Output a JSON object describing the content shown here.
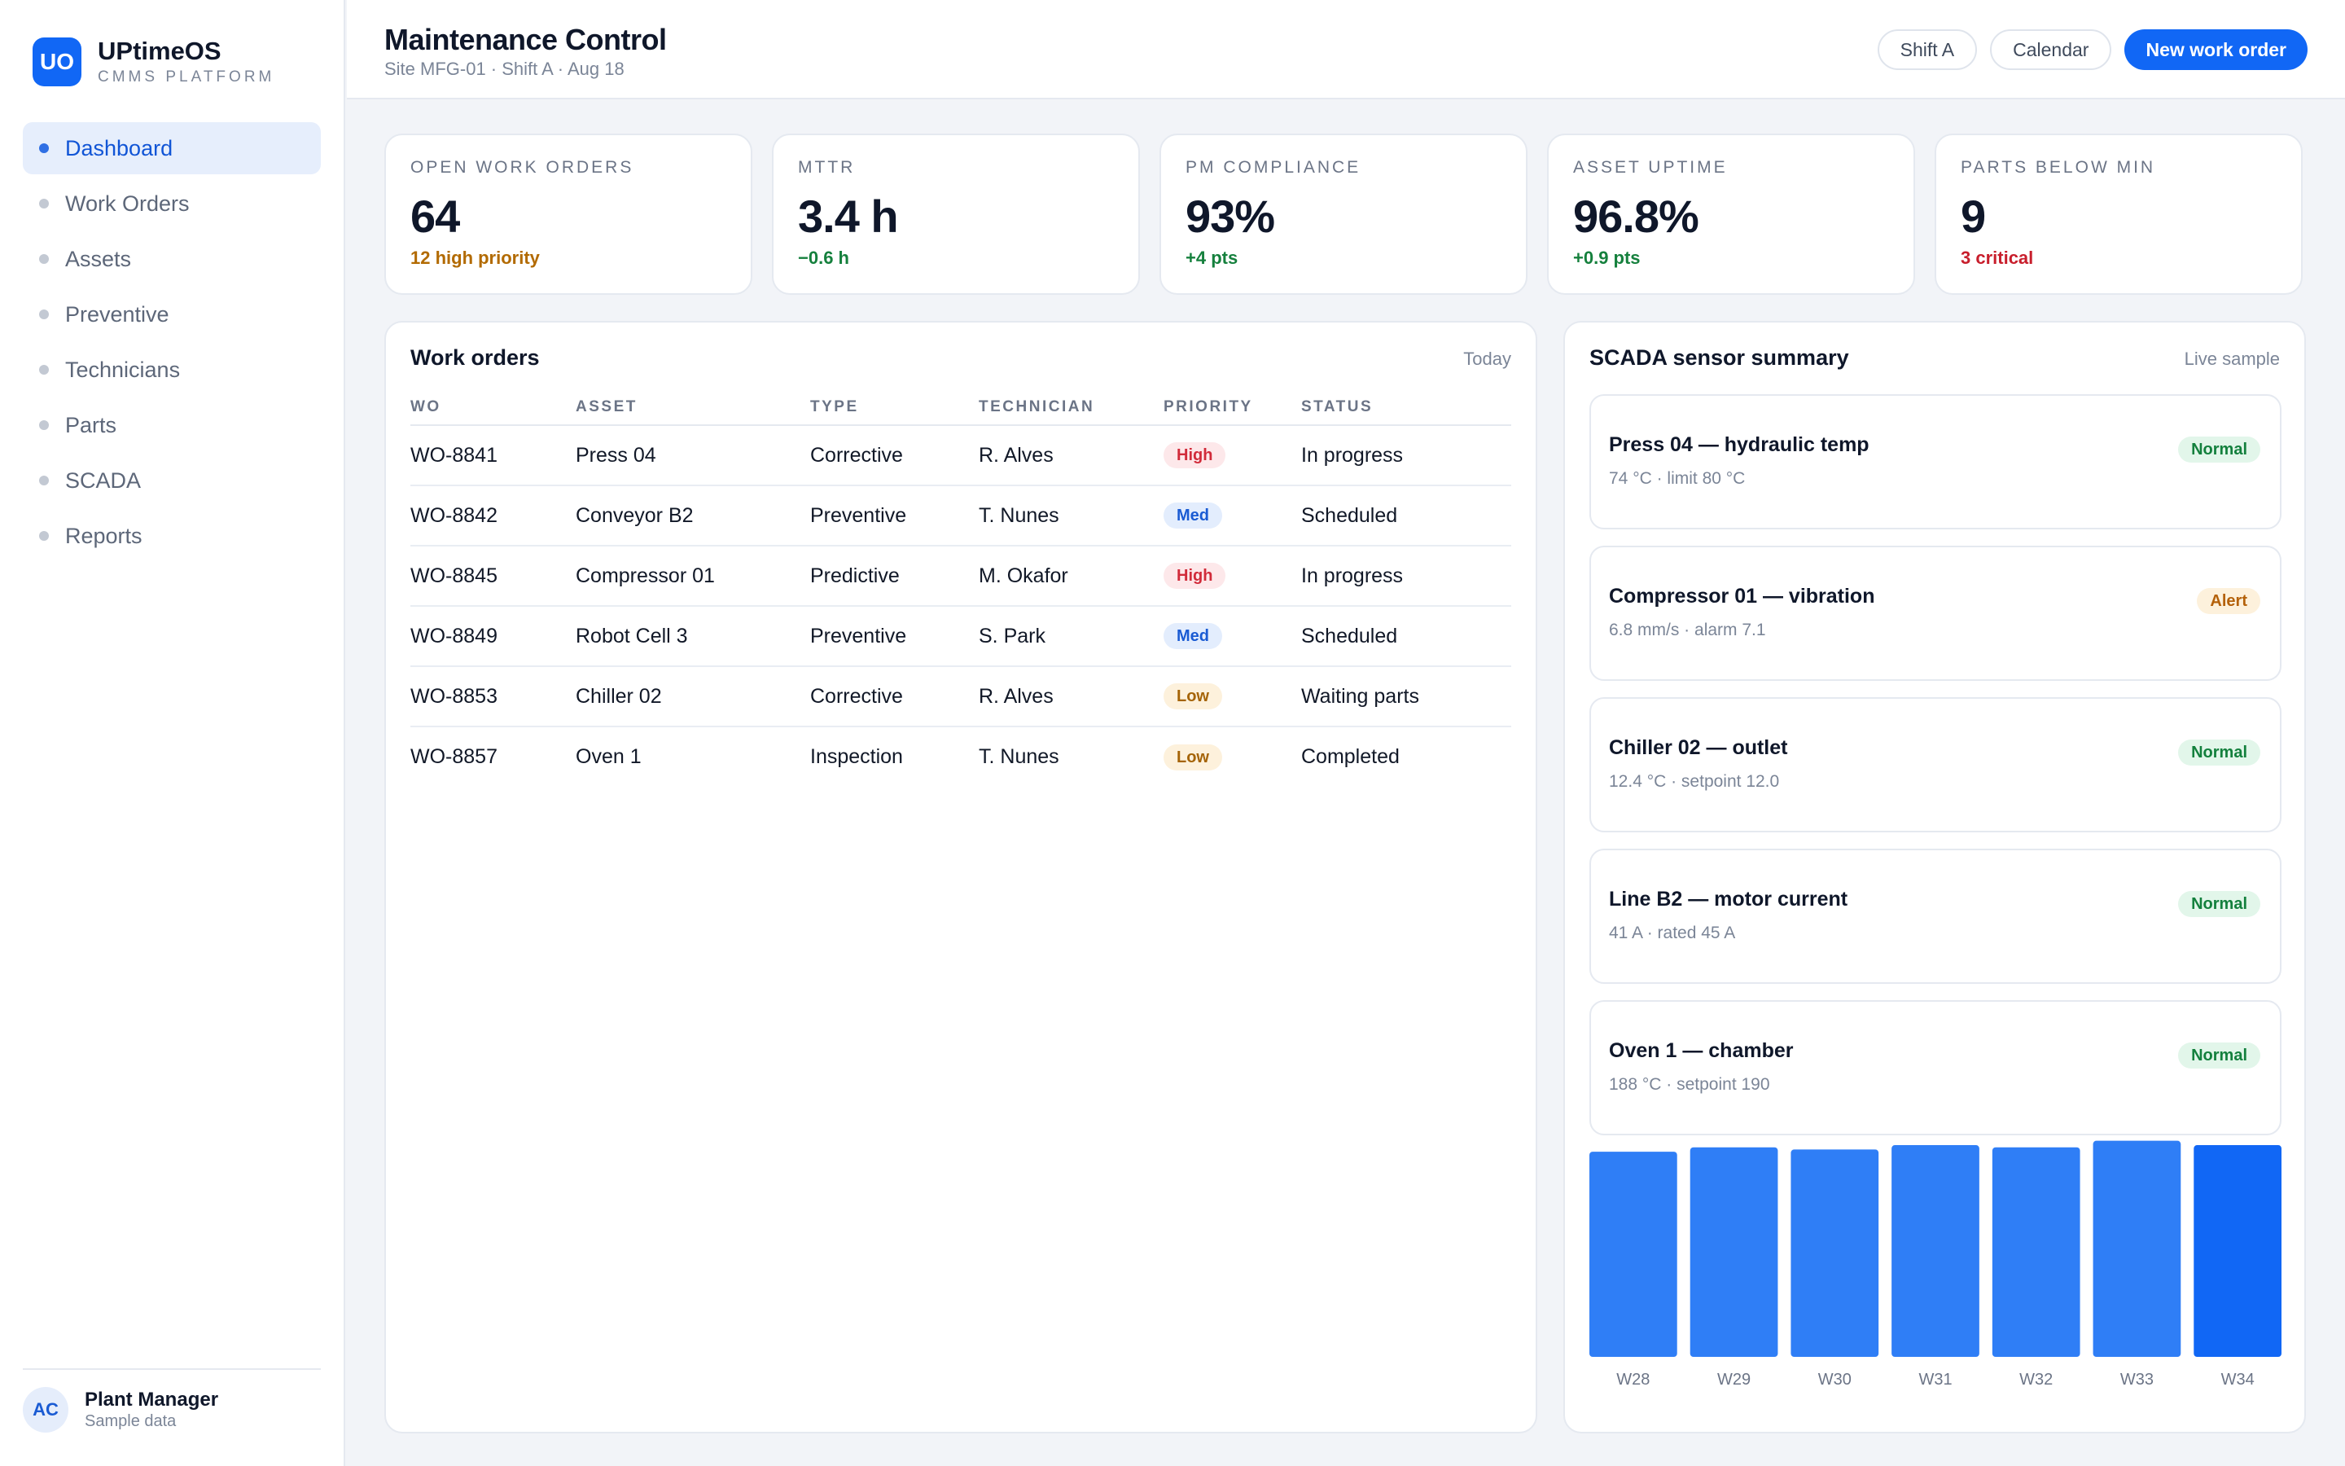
{
  "brand": {
    "logo": "UO",
    "name": "UPtimeOS",
    "subtitle": "CMMS PLATFORM"
  },
  "nav": [
    {
      "label": "Dashboard",
      "active": true
    },
    {
      "label": "Work Orders"
    },
    {
      "label": "Assets"
    },
    {
      "label": "Preventive"
    },
    {
      "label": "Technicians"
    },
    {
      "label": "Parts"
    },
    {
      "label": "SCADA"
    },
    {
      "label": "Reports"
    }
  ],
  "user": {
    "initials": "AC",
    "name": "Plant Manager",
    "subtitle": "Sample data"
  },
  "header": {
    "title": "Maintenance Control",
    "subtitle": "Site MFG-01 · Shift A · Aug 18",
    "buttons": {
      "shift": "Shift A",
      "calendar": "Calendar",
      "new_work_order": "New work order"
    }
  },
  "kpis": [
    {
      "label": "OPEN WORK ORDERS",
      "value": "64",
      "delta": "12 high priority",
      "delta_color": "#b26a00"
    },
    {
      "label": "MTTR",
      "value": "3.4 h",
      "delta": "−0.6 h",
      "delta_color": "#15803d"
    },
    {
      "label": "PM COMPLIANCE",
      "value": "93%",
      "delta": "+4 pts",
      "delta_color": "#15803d"
    },
    {
      "label": "ASSET UPTIME",
      "value": "96.8%",
      "delta": "+0.9 pts",
      "delta_color": "#15803d"
    },
    {
      "label": "PARTS BELOW MIN",
      "value": "9",
      "delta": "3 critical",
      "delta_color": "#c81e2c"
    }
  ],
  "work_orders": {
    "title": "Work orders",
    "meta": "Today",
    "columns": [
      "WO",
      "ASSET",
      "TYPE",
      "TECHNICIAN",
      "PRIORITY",
      "STATUS"
    ],
    "rows": [
      {
        "wo": "WO-8841",
        "asset": "Press 04",
        "type": "Corrective",
        "technician": "R. Alves",
        "priority": "High",
        "status": "In progress"
      },
      {
        "wo": "WO-8842",
        "asset": "Conveyor B2",
        "type": "Preventive",
        "technician": "T. Nunes",
        "priority": "Med",
        "status": "Scheduled"
      },
      {
        "wo": "WO-8845",
        "asset": "Compressor 01",
        "type": "Predictive",
        "technician": "M. Okafor",
        "priority": "High",
        "status": "In progress"
      },
      {
        "wo": "WO-8849",
        "asset": "Robot Cell 3",
        "type": "Preventive",
        "technician": "S. Park",
        "priority": "Med",
        "status": "Scheduled"
      },
      {
        "wo": "WO-8853",
        "asset": "Chiller 02",
        "type": "Corrective",
        "technician": "R. Alves",
        "priority": "Low",
        "status": "Waiting parts"
      },
      {
        "wo": "WO-8857",
        "asset": "Oven 1",
        "type": "Inspection",
        "technician": "T. Nunes",
        "priority": "Low",
        "status": "Completed"
      }
    ]
  },
  "scada": {
    "title": "SCADA sensor summary",
    "meta": "Live sample",
    "sensors": [
      {
        "name": "Press 04 — hydraulic temp",
        "detail": "74 °C · limit 80 °C",
        "status": "Normal"
      },
      {
        "name": "Compressor 01 — vibration",
        "detail": "6.8 mm/s · alarm 7.1",
        "status": "Alert"
      },
      {
        "name": "Chiller 02 — outlet",
        "detail": "12.4 °C · setpoint 12.0",
        "status": "Normal"
      },
      {
        "name": "Line B2 — motor current",
        "detail": "41 A · rated 45 A",
        "status": "Normal"
      },
      {
        "name": "Oven 1 — chamber",
        "detail": "188 °C · setpoint 190",
        "status": "Normal"
      }
    ]
  },
  "chart_data": {
    "type": "bar",
    "categories": [
      "W28",
      "W29",
      "W30",
      "W31",
      "W32",
      "W33",
      "W34"
    ],
    "values": [
      0.94,
      0.96,
      0.95,
      0.97,
      0.96,
      0.99,
      0.97
    ],
    "ylim": [
      0,
      1
    ],
    "grid": false,
    "colors": [
      "#2f7ef6",
      "#2f7ef6",
      "#2f7ef6",
      "#2f7ef6",
      "#2f7ef6",
      "#2f7ef6",
      "#1167f5"
    ]
  },
  "colors": {
    "accent": "#1167f5",
    "high": "#d12b3a",
    "med": "#1a5bd3",
    "low": "#a56407",
    "normal": "#13803d",
    "alert": "#b4610a"
  }
}
